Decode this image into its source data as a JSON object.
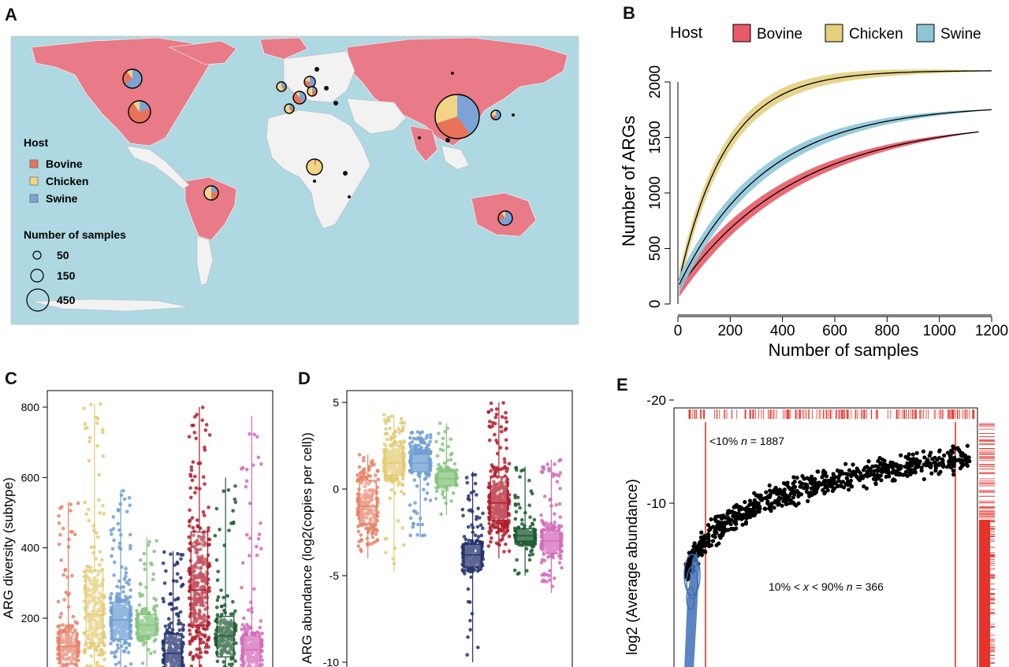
{
  "panels": {
    "a": "A",
    "b": "B",
    "c": "C",
    "d": "D",
    "e": "E"
  },
  "colors": {
    "bovine": "#e8735a",
    "chicken": "#f3d587",
    "swine": "#7ba3d6",
    "land": "#e97a87",
    "land_gray": "#f2f2f2",
    "ocean": "#aed8e2",
    "band_bovine": "#e85a66",
    "band_chicken": "#e3cf7e",
    "band_swine": "#8ec6d8",
    "pointE": "#000000",
    "lineE": "#e5322a",
    "densityE": "#3f6fb5"
  },
  "map": {
    "legend_host_title": "Host",
    "legend_hosts": [
      {
        "name": "Bovine",
        "color": "#e8735a"
      },
      {
        "name": "Chicken",
        "color": "#f3d587"
      },
      {
        "name": "Swine",
        "color": "#7ba3d6"
      }
    ],
    "legend_size_title": "Number of samples",
    "legend_sizes": [
      "50",
      "150",
      "450"
    ],
    "pies": [
      {
        "id": "usa-north",
        "b": 0.25,
        "c": 0.1,
        "s": 0.65
      },
      {
        "id": "usa-south",
        "b": 0.7,
        "c": 0.1,
        "s": 0.2
      },
      {
        "id": "china",
        "b": 0.3,
        "c": 0.3,
        "s": 0.4
      },
      {
        "id": "brazil",
        "b": 0.3,
        "c": 0.5,
        "s": 0.2
      },
      {
        "id": "australia",
        "b": 0.2,
        "c": 0.1,
        "s": 0.7
      },
      {
        "id": "nigeria",
        "b": 0.05,
        "c": 0.95,
        "s": 0.0
      },
      {
        "id": "uk",
        "b": 0.1,
        "c": 0.6,
        "s": 0.3
      },
      {
        "id": "germany",
        "b": 0.3,
        "c": 0.2,
        "s": 0.5
      },
      {
        "id": "france",
        "b": 0.5,
        "c": 0.1,
        "s": 0.4
      },
      {
        "id": "spain",
        "b": 0.2,
        "c": 0.6,
        "s": 0.2
      },
      {
        "id": "italy",
        "b": 0.3,
        "c": 0.5,
        "s": 0.2
      },
      {
        "id": "korea",
        "b": 0.2,
        "c": 0.3,
        "s": 0.5
      }
    ]
  },
  "chart_data": [
    {
      "panel": "B",
      "type": "area",
      "legend_title": "Host",
      "xlabel": "Number of samples",
      "ylabel": "Number of ARGs",
      "xlim": [
        0,
        1200
      ],
      "ylim": [
        0,
        2100
      ],
      "xticks": [
        0,
        200,
        400,
        600,
        800,
        1000,
        1200
      ],
      "yticks": [
        0,
        500,
        1000,
        1500,
        2000
      ],
      "series": [
        {
          "name": "Bovine",
          "xmax": 1150,
          "start": 130,
          "end": 1550
        },
        {
          "name": "Chicken",
          "xmax": 1200,
          "start": 160,
          "end": 2100
        },
        {
          "name": "Swine",
          "xmax": 1200,
          "start": 150,
          "end": 1750
        }
      ]
    },
    {
      "panel": "C",
      "type": "box",
      "ylabel": "ARG diversity (subtype)",
      "yticks": [
        200,
        400,
        600,
        800
      ],
      "boxes": [
        {
          "color": "#e8826a",
          "q1": 70,
          "median": 120,
          "q3": 160,
          "min": 10,
          "max": 530
        },
        {
          "color": "#e3cb74",
          "q1": 130,
          "median": 210,
          "q3": 335,
          "min": 10,
          "max": 810
        },
        {
          "color": "#6f9fd4",
          "q1": 140,
          "median": 195,
          "q3": 245,
          "min": 10,
          "max": 565
        },
        {
          "color": "#86c47e",
          "q1": 150,
          "median": 180,
          "q3": 210,
          "min": 30,
          "max": 430
        },
        {
          "color": "#26336e",
          "q1": 60,
          "median": 100,
          "q3": 155,
          "min": 10,
          "max": 390
        },
        {
          "color": "#b11f2d",
          "q1": 180,
          "median": 280,
          "q3": 445,
          "min": 10,
          "max": 800
        },
        {
          "color": "#1e5b33",
          "q1": 90,
          "median": 150,
          "q3": 205,
          "min": 10,
          "max": 600
        },
        {
          "color": "#d46bb9",
          "q1": 60,
          "median": 110,
          "q3": 150,
          "min": 10,
          "max": 775
        }
      ]
    },
    {
      "panel": "D",
      "type": "box",
      "ylabel": "ARG abundance (log2(copies per cell))",
      "yticks": [
        -10,
        -5,
        0,
        5
      ],
      "boxes": [
        {
          "color": "#e8826a",
          "q1": -2,
          "median": -1,
          "q3": 0.5,
          "min": -4,
          "max": 2
        },
        {
          "color": "#e3cb74",
          "q1": 0.8,
          "median": 1.5,
          "q3": 2.5,
          "min": -4.8,
          "max": 4.3
        },
        {
          "color": "#6f9fd4",
          "q1": 1.0,
          "median": 1.5,
          "q3": 2.0,
          "min": -2.8,
          "max": 3.3
        },
        {
          "color": "#86c47e",
          "q1": 0.2,
          "median": 0.6,
          "q3": 1.0,
          "min": -1.5,
          "max": 3.8
        },
        {
          "color": "#26336e",
          "q1": -4.5,
          "median": -3.8,
          "q3": -3.2,
          "min": -10,
          "max": 1
        },
        {
          "color": "#b11f2d",
          "q1": -1.8,
          "median": -0.8,
          "q3": 0.7,
          "min": -4,
          "max": 5
        },
        {
          "color": "#1e5b33",
          "q1": -3.0,
          "median": -2.7,
          "q3": -2.3,
          "min": -5,
          "max": 1.3
        },
        {
          "color": "#d46bb9",
          "q1": -3.7,
          "median": -3.0,
          "q3": -2.4,
          "min": -6,
          "max": 1.7
        }
      ]
    },
    {
      "panel": "E",
      "type": "scatter",
      "ylabel": "log2 (Average abundance)",
      "yticks": [
        -10,
        -20
      ],
      "annot_low_pre": "<10% ",
      "annot_low_n": "n",
      "annot_low_val": " = 1887",
      "annot_mid_pre": "10% < ",
      "annot_mid_x": "x",
      "annot_mid_mid": " < 90% ",
      "annot_mid_n": "n",
      "annot_mid_val": " = 366"
    }
  ]
}
